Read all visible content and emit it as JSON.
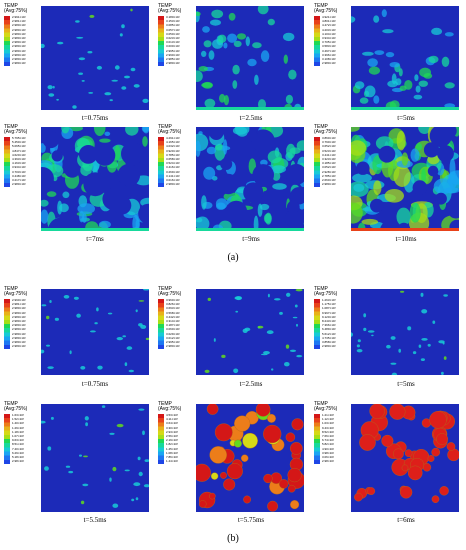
{
  "colors": {
    "scale": [
      "#1f22c8",
      "#1e46e6",
      "#1d77f2",
      "#1aa6f2",
      "#17cbd6",
      "#17d99c",
      "#1fd955",
      "#63db1d",
      "#a6df17",
      "#d6d917",
      "#e8b21a",
      "#ec7d1a",
      "#e8421a",
      "#d41717"
    ],
    "background": "#1c2ab8",
    "particle_hot": "#dd1f1a"
  },
  "legend_label": "TEMP\n(Avg:75%)",
  "section_a": {
    "label": "(a)",
    "panels": [
      {
        "caption": "t=0.75ms",
        "values": [
          "2.991×10²",
          "2.981×10²",
          "2.980×10²",
          "2.980×10²",
          "2.980×10²",
          "2.980×10²",
          "2.980×10²",
          "2.980×10²",
          "2.980×10²",
          "2.980×10²",
          "2.980×10²",
          "2.980×10²"
        ]
      },
      {
        "caption": "t=2.5ms",
        "values": [
          "3.180×10²",
          "3.153×10²",
          "3.085×10²",
          "3.057×10²",
          "3.050×10²",
          "3.023×10²",
          "3.013×10²",
          "3.000×10²",
          "2.995×10²",
          "2.990×10²",
          "2.985×10²",
          "2.980×10²"
        ]
      },
      {
        "caption": "t=5ms",
        "values": [
          "4.921×10²",
          "4.801×10²",
          "4.472×10²",
          "4.203×10²",
          "4.104×10²",
          "3.934×10²",
          "3.705×10²",
          "3.583×10²",
          "3.497×10²",
          "3.396×10²",
          "3.108×10²",
          "2.980×10²"
        ]
      },
      {
        "caption": "t=7ms",
        "values": [
          "5.795×10²",
          "5.450×10²",
          "5.065×10²",
          "4.847×10²",
          "4.620×10²",
          "4.393×10²",
          "4.163×10²",
          "3.934×10²",
          "3.703×10²",
          "3.448×10²",
          "3.217×10²",
          "2.980×10²"
        ]
      },
      {
        "caption": "t=9ms",
        "values": [
          "4.291×10²",
          "4.165×10²",
          "4.032×10²",
          "3.920×10²",
          "3.785×10²",
          "3.658×10²",
          "3.524×10²",
          "3.416×10²",
          "3.269×10²",
          "3.141×10²",
          "3.016×10²",
          "2.980×10²"
        ]
      },
      {
        "caption": "t=10ms",
        "values": [
          "3.860×10²",
          "3.790×10²",
          "3.652×10²",
          "3.523×10²",
          "3.441×10²",
          "3.323×10²",
          "3.185×10²",
          "3.052×10²",
          "2.928×10²",
          "2.785×10²",
          "2.660×10²",
          "2.980×10²"
        ]
      }
    ]
  },
  "section_b": {
    "label": "(b)",
    "panels": [
      {
        "caption": "t=0.75ms",
        "values": [
          "2.990×10²",
          "2.981×10²",
          "2.980×10²",
          "2.980×10²",
          "2.980×10²",
          "2.980×10²",
          "2.980×10²",
          "2.980×10²",
          "2.980×10²",
          "2.980×10²",
          "2.980×10²",
          "2.980×10²"
        ]
      },
      {
        "caption": "t=2.5ms",
        "values": [
          "3.960×10²",
          "3.826×10²",
          "3.693×10²",
          "3.568×10²",
          "3.442×10²",
          "3.314×10²",
          "3.187×10²",
          "3.060×10²",
          "3.029×10²",
          "3.012×10²",
          "2.995×10²",
          "2.980×10²"
        ]
      },
      {
        "caption": "t=5ms",
        "values": [
          "1.263×10³",
          "1.175×10³",
          "1.087×10³",
          "9.997×10²",
          "9.120×10²",
          "8.243×10²",
          "7.366×10²",
          "6.489×10²",
          "5.612×10²",
          "4.735×10²",
          "3.858×10²",
          "2.980×10²"
        ]
      },
      {
        "caption": "t=5.5ms",
        "values": [
          "1.63×10³",
          "1.52×10³",
          "1.40×10³",
          "1.29×10³",
          "1.18×10³",
          "1.07×10³",
          "9.63×10²",
          "8.51×10²",
          "7.40×10²",
          "6.29×10²",
          "5.18×10²",
          "2.98×10²"
        ]
      },
      {
        "caption": "t=5.75ms",
        "values": [
          "4.53×10³",
          "4.11×10³",
          "3.64×10³",
          "3.30×10³",
          "2.93×10³",
          "2.56×10³",
          "2.19×10³",
          "1.82×10³",
          "1.45×10³",
          "1.08×10³",
          "7.86×10²",
          "1.44×10²"
        ]
      },
      {
        "caption": "t=6ms",
        "values": [
          "1.21×10³",
          "1.12×10³",
          "1.03×10³",
          "9.43×10²",
          "8.52×10²",
          "7.66×10²",
          "6.74×10²",
          "5.82×10²",
          "4.90×10²",
          "3.98×10²",
          "3.06×10²",
          "2.98×10²"
        ]
      }
    ]
  }
}
